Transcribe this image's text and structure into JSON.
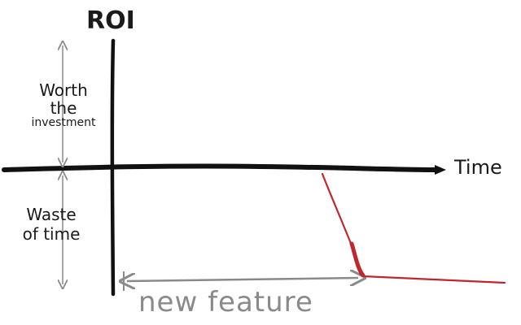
{
  "labels": {
    "y_axis": "ROI",
    "x_axis": "Time",
    "positive_region": {
      "line1": "Worth",
      "line2": "the",
      "line3": "investment"
    },
    "negative_region": {
      "line1": "Waste",
      "line2": "of time"
    },
    "span_label": "new feature"
  },
  "colors": {
    "axis": "#111111",
    "guide_arrow": "#8a8a8a",
    "roi_curve": "#c0272d"
  }
}
